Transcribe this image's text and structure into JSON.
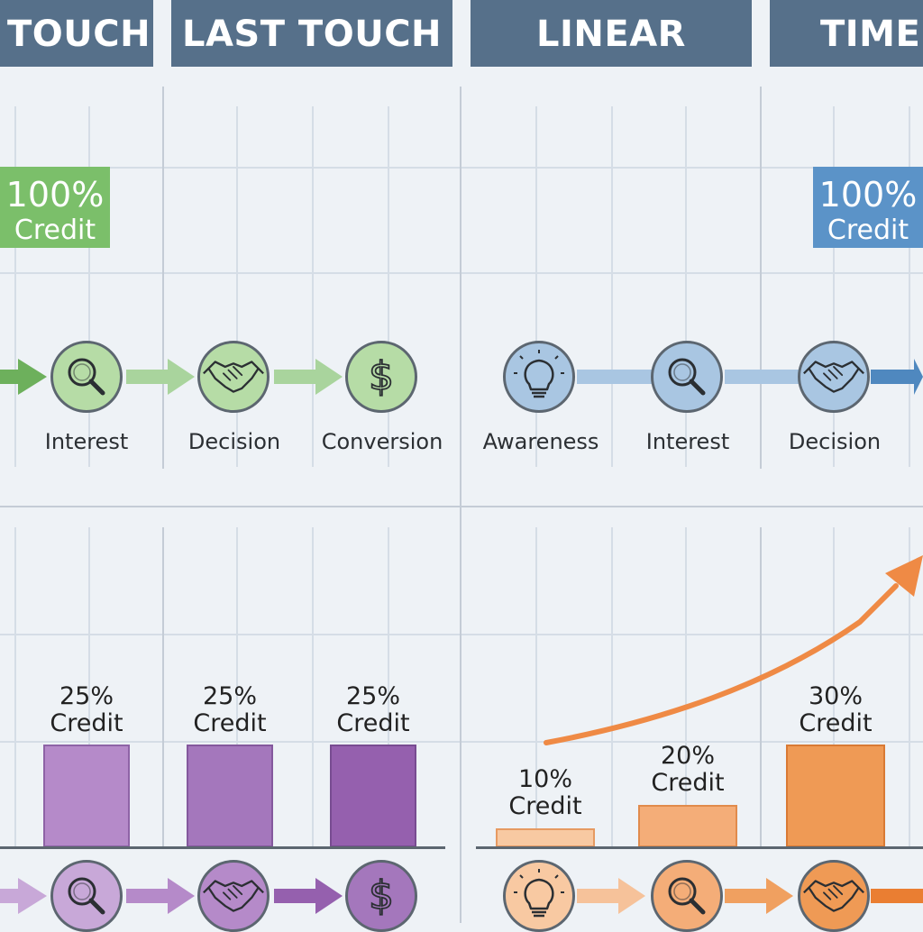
{
  "headers": {
    "first_touch": "TOUCH",
    "last_touch": "LAST TOUCH",
    "linear": "LINEAR",
    "time_decay": "TIME D"
  },
  "colors": {
    "header_bg": "#56708a",
    "green": "#7bbf6a",
    "blue": "#5b93c8",
    "purple": "#9b6fb5",
    "orange": "#f0a060"
  },
  "last_touch_panel": {
    "credit": {
      "pct": "100%",
      "label": "Credit"
    },
    "stages": [
      {
        "label": "Interest",
        "icon": "magnifier-icon"
      },
      {
        "label": "Decision",
        "icon": "handshake-icon"
      },
      {
        "label": "Conversion",
        "icon": "dollar-icon"
      }
    ]
  },
  "first_touch_panel": {
    "credit": {
      "pct": "100%",
      "label": "Credit"
    },
    "stages": [
      {
        "label": "Awareness",
        "icon": "lightbulb-icon"
      },
      {
        "label": "Interest",
        "icon": "magnifier-icon"
      },
      {
        "label": "Decision",
        "icon": "handshake-icon"
      }
    ]
  },
  "linear_panel": {
    "bars": [
      {
        "pct": "25%",
        "label": "Credit",
        "value": 25
      },
      {
        "pct": "25%",
        "label": "Credit",
        "value": 25
      },
      {
        "pct": "25%",
        "label": "Credit",
        "value": 25
      }
    ],
    "icons": [
      "magnifier-icon",
      "handshake-icon",
      "dollar-icon"
    ]
  },
  "time_decay_panel": {
    "bars": [
      {
        "pct": "10%",
        "label": "Credit",
        "value": 10
      },
      {
        "pct": "20%",
        "label": "Credit",
        "value": 20
      },
      {
        "pct": "30%",
        "label": "Credit",
        "value": 30
      }
    ],
    "icons": [
      "lightbulb-icon",
      "magnifier-icon",
      "handshake-icon"
    ]
  }
}
